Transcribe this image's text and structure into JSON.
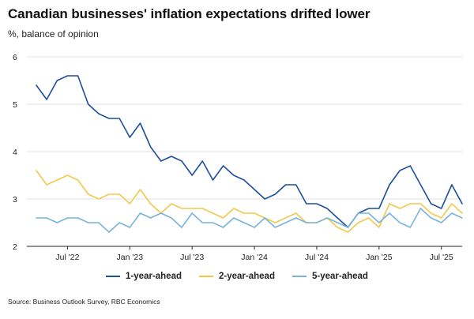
{
  "header": {
    "title": "Canadian businesses' inflation expectations drifted lower",
    "subtitle": "%, balance of opinion"
  },
  "footer": {
    "source": "Source: Business Outlook Survey, RBC Economics"
  },
  "chart_data": {
    "type": "line",
    "title": "Canadian businesses' inflation expectations drifted lower",
    "ylabel": "%, balance of opinion",
    "xlabel": "",
    "ylim": [
      2,
      6
    ],
    "yticks": [
      2,
      3,
      4,
      5,
      6
    ],
    "grid": "horizontal",
    "x_labels": [
      {
        "index": 3,
        "label": "Jul '22"
      },
      {
        "index": 9,
        "label": "Jan '23"
      },
      {
        "index": 15,
        "label": "Jul '23"
      },
      {
        "index": 21,
        "label": "Jan '24"
      },
      {
        "index": 27,
        "label": "Jul '24"
      },
      {
        "index": 33,
        "label": "Jan '25"
      },
      {
        "index": 39,
        "label": "Jul '25"
      }
    ],
    "n_points": 42,
    "legend_position": "bottom",
    "series": [
      {
        "name": "1-year-ahead",
        "color": "#1f4e9c",
        "values": [
          5.4,
          5.1,
          5.5,
          5.6,
          5.6,
          5.0,
          4.8,
          4.7,
          4.7,
          4.3,
          4.6,
          4.1,
          3.8,
          3.9,
          3.8,
          3.5,
          3.8,
          3.4,
          3.7,
          3.5,
          3.4,
          3.2,
          3.0,
          3.1,
          3.3,
          3.3,
          2.9,
          2.9,
          2.8,
          2.6,
          2.4,
          2.7,
          2.8,
          2.8,
          3.3,
          3.6,
          3.7,
          3.3,
          2.9,
          2.8,
          3.3,
          2.9
        ]
      },
      {
        "name": "2-year-ahead",
        "color": "#f2c94c",
        "values": [
          3.6,
          3.3,
          3.4,
          3.5,
          3.4,
          3.1,
          3.0,
          3.1,
          3.1,
          2.9,
          3.2,
          2.9,
          2.7,
          2.9,
          2.8,
          2.8,
          2.8,
          2.7,
          2.6,
          2.8,
          2.7,
          2.7,
          2.6,
          2.5,
          2.6,
          2.7,
          2.5,
          2.5,
          2.6,
          2.4,
          2.3,
          2.5,
          2.6,
          2.4,
          2.9,
          2.8,
          2.9,
          2.9,
          2.7,
          2.6,
          2.9,
          2.7
        ]
      },
      {
        "name": "5-year-ahead",
        "color": "#7ab3d9",
        "values": [
          2.6,
          2.6,
          2.5,
          2.6,
          2.6,
          2.5,
          2.5,
          2.3,
          2.5,
          2.4,
          2.7,
          2.6,
          2.7,
          2.6,
          2.4,
          2.7,
          2.5,
          2.5,
          2.4,
          2.6,
          2.5,
          2.4,
          2.6,
          2.4,
          2.5,
          2.6,
          2.5,
          2.5,
          2.6,
          2.5,
          2.4,
          2.7,
          2.7,
          2.5,
          2.7,
          2.5,
          2.4,
          2.8,
          2.6,
          2.5,
          2.7,
          2.6
        ]
      }
    ]
  }
}
